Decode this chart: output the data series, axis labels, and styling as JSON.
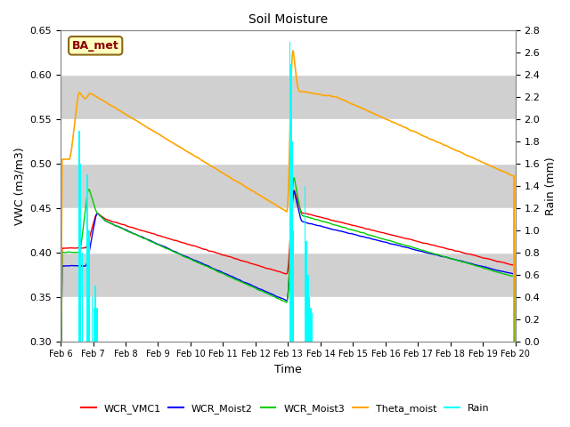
{
  "title": "Soil Moisture",
  "xlabel": "Time",
  "ylabel_left": "VWC (m3/m3)",
  "ylabel_right": "Rain (mm)",
  "ylim_left": [
    0.3,
    0.65
  ],
  "ylim_right": [
    0.0,
    2.8
  ],
  "annotation": "BA_met",
  "x_tick_labels": [
    "Feb 6",
    "Feb 7",
    "Feb 8",
    "Feb 9",
    "Feb 10",
    "Feb 11",
    "Feb 12",
    "Feb 13",
    "Feb 14",
    "Feb 15",
    "Feb 16",
    "Feb 17",
    "Feb 18",
    "Feb 19",
    "Feb 20"
  ],
  "legend_labels": [
    "WCR_VMC1",
    "WCR_Moist2",
    "WCR_Moist3",
    "Theta_moist",
    "Rain"
  ],
  "legend_colors": [
    "#ff0000",
    "#0000ff",
    "#00cc00",
    "#ffa500",
    "#00ffff"
  ],
  "grid_color": "#ffffff",
  "bg_color": "#e8e8e8",
  "fig_bg": "#ffffff",
  "band_color": "#d0d0d0"
}
